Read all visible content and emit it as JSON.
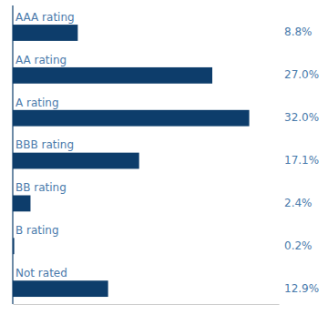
{
  "chart_data": {
    "type": "bar",
    "orientation": "horizontal",
    "categories": [
      "AAA rating",
      "AA rating",
      "A rating",
      "BBB rating",
      "BB rating",
      "B rating",
      "Not rated"
    ],
    "values": [
      8.8,
      27.0,
      32.0,
      17.1,
      2.4,
      0.2,
      12.9
    ],
    "value_labels": [
      "8.8%",
      "27.0%",
      "32.0%",
      "17.1%",
      "2.4%",
      "0.2%",
      "12.9%"
    ],
    "color": "#0d3d6b",
    "xlim": [
      0,
      36
    ],
    "tick_labels": false,
    "data_labels": true
  }
}
